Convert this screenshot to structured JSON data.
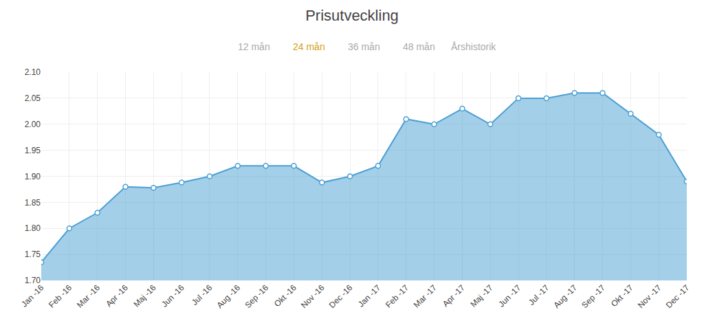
{
  "chart_data": {
    "type": "area",
    "title": "Prisutveckling",
    "annotations": [
      {
        "text": "12 mån",
        "color": "#aaaaaa"
      },
      {
        "text": "24 mån",
        "color": "#d4a017"
      },
      {
        "text": "36 mån",
        "color": "#aaaaaa"
      },
      {
        "text": "48 mån",
        "color": "#aaaaaa"
      },
      {
        "text": "Årshistorik",
        "color": "#aaaaaa"
      }
    ],
    "categories": [
      "Jan -16",
      "Feb -16",
      "Mar -16",
      "Apr -16",
      "Maj -16",
      "Jun -16",
      "Jul -16",
      "Aug -16",
      "Sep -16",
      "Okt -16",
      "Nov -16",
      "Dec -16",
      "Jan -17",
      "Feb -17",
      "Mar -17",
      "Apr -17",
      "Maj -17",
      "Jun -17",
      "Jul -17",
      "Aug -17",
      "Sep -17",
      "Okt -17",
      "Nov -17",
      "Dec -17"
    ],
    "values": [
      1.735,
      1.8,
      1.83,
      1.88,
      1.878,
      1.888,
      1.9,
      1.92,
      1.92,
      1.92,
      1.888,
      1.9,
      1.92,
      2.01,
      2.0,
      2.03,
      2.0,
      2.05,
      2.05,
      2.06,
      2.06,
      2.02,
      1.98,
      1.89
    ],
    "color": "#4a9fd4",
    "marker": "circle",
    "ylim": [
      1.7,
      2.1
    ],
    "yticks": [
      {
        "value": 1.7,
        "label": "1.70"
      },
      1.75,
      {
        "value": 1.8,
        "label": "1.80"
      },
      1.85,
      {
        "value": 1.9,
        "label": "1.90"
      },
      1.95,
      {
        "value": 2.0,
        "label": "2.00"
      },
      2.05,
      {
        "value": 2.1,
        "label": "2.10"
      }
    ],
    "grid": true
  }
}
